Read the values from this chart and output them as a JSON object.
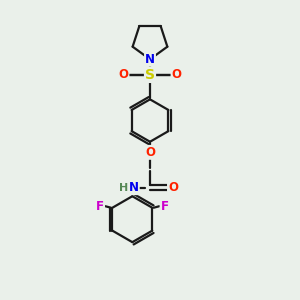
{
  "bg_color": "#eaf0ea",
  "bond_color": "#1a1a1a",
  "bond_width": 1.6,
  "atom_colors": {
    "N": "#0000ee",
    "O": "#ff2200",
    "S": "#cccc00",
    "F": "#cc00cc",
    "H": "#558855",
    "C": "#1a1a1a"
  },
  "font_size": 8.5
}
